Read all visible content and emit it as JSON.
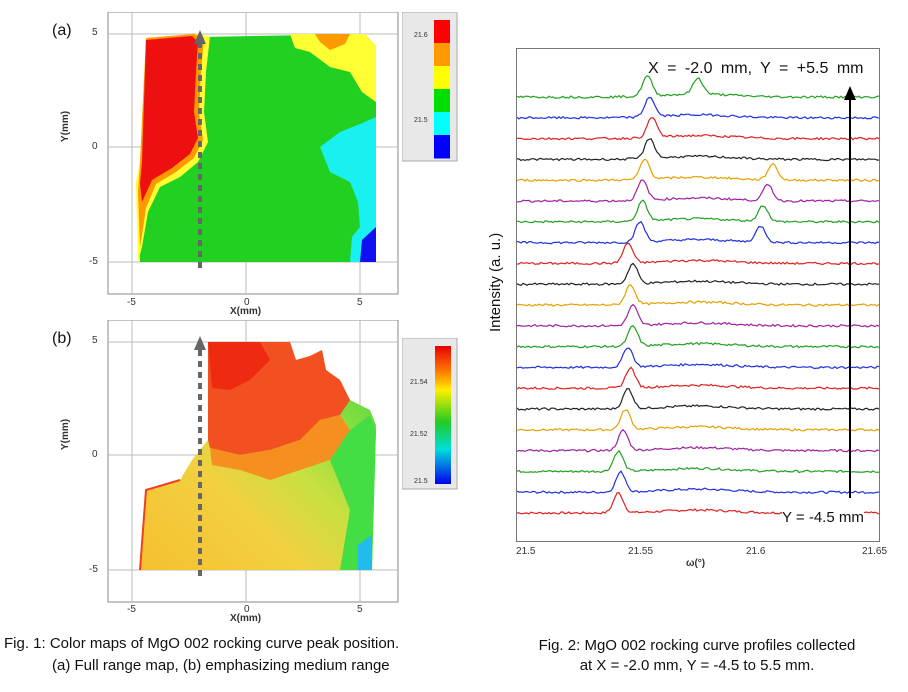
{
  "figure1": {
    "caption_line1": "Fig. 1: Color maps of MgO 002 rocking curve peak position.",
    "caption_line2": "(a) Full range map, (b) emphasizing medium range",
    "panel_a": {
      "label": "(a)",
      "xlabel": "X(mm)",
      "ylabel": "Y(mm)",
      "xticks": [
        "-5",
        "0",
        "5"
      ],
      "yticks": [
        "5",
        "0",
        "-5"
      ],
      "colorbar_ticks": [
        "21.6",
        "21.5"
      ],
      "colorbar_colors": [
        "#ff0000",
        "#ff9900",
        "#ffff00",
        "#00dd00",
        "#00ffff",
        "#0000ff"
      ]
    },
    "panel_b": {
      "label": "(b)",
      "xlabel": "X(mm)",
      "ylabel": "Y(mm)",
      "xticks": [
        "-5",
        "0",
        "5"
      ],
      "yticks": [
        "5",
        "0",
        "-5"
      ],
      "colorbar_ticks": [
        "21.54",
        "21.52",
        "21.5"
      ]
    }
  },
  "figure2": {
    "caption_line1": "Fig. 2: MgO 002 rocking curve profiles collected",
    "caption_line2": "at X = -2.0 mm, Y = -4.5 to 5.5 mm.",
    "annotation_top": "X = -2.0 mm, Y = +5.5 mm",
    "annotation_bottom": "Y = -4.5 mm",
    "ylabel": "Intensity (a. u.)",
    "xlabel": "ω(°)",
    "xticks": [
      "21.5",
      "21.55",
      "21.6",
      "21.65"
    ]
  },
  "chart_data": {
    "type": "line",
    "xlabel": "ω(°)",
    "ylabel": "Intensity (a. u.)",
    "xlim": [
      21.5,
      21.65
    ],
    "y_positions_mm": [
      -4.5,
      -4.0,
      -3.5,
      -3.0,
      -2.5,
      -2.0,
      -1.5,
      -1.0,
      -0.5,
      0.0,
      0.5,
      1.0,
      1.5,
      2.0,
      2.5,
      3.0,
      3.5,
      4.0,
      4.5,
      5.0,
      5.5
    ],
    "peak_positions_deg": [
      21.542,
      21.543,
      21.542,
      21.544,
      21.545,
      21.546,
      21.547,
      21.546,
      21.548,
      21.548,
      21.547,
      21.548,
      21.546,
      [
        21.551,
        21.601
      ],
      [
        21.552,
        21.602
      ],
      [
        21.552,
        21.604
      ],
      [
        21.553,
        21.606
      ],
      21.555,
      21.556,
      21.555,
      [
        21.554,
        21.575
      ]
    ],
    "series_colors": [
      "#e02020",
      "#2030e0",
      "#20a020",
      "#a020a0",
      "#e8a000",
      "#222222"
    ]
  }
}
